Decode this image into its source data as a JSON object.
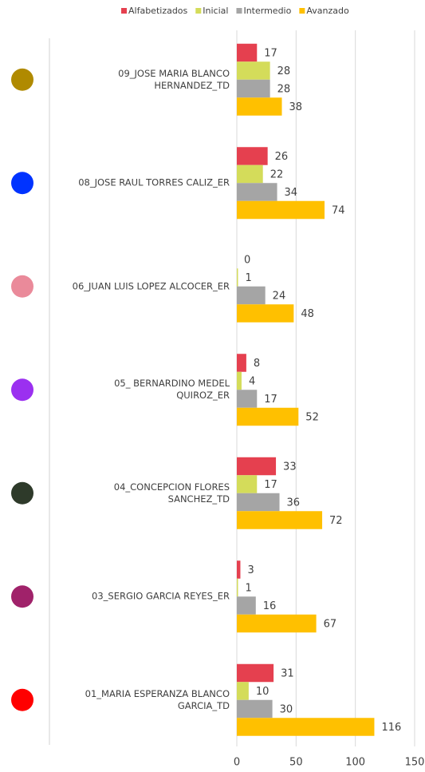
{
  "chart_data": {
    "type": "bar",
    "orientation": "horizontal",
    "categories": [
      "09_JOSE MARIA BLANCO HERNANDEZ_TD",
      "08_JOSE RAUL TORRES CALIZ_ER",
      "06_JUAN LUIS LOPEZ ALCOCER_ER",
      "05_ BERNARDINO MEDEL QUIROZ_ER",
      "04_CONCEPCION FLORES SANCHEZ_TD",
      "03_SERGIO GARCIA REYES_ER",
      "01_MARIA ESPERANZA BLANCO GARCIA_TD"
    ],
    "category_colors": [
      "#b08a00",
      "#0033ff",
      "#ea8a9a",
      "#9b30f0",
      "#2e3a2a",
      "#a0226a",
      "#ff0000"
    ],
    "series": [
      {
        "name": "Alfabetizados",
        "color": "#e5404f",
        "values": [
          17,
          26,
          0,
          8,
          33,
          3,
          31
        ]
      },
      {
        "name": "Inicial",
        "color": "#d4dc5a",
        "values": [
          28,
          22,
          1,
          4,
          17,
          1,
          10
        ]
      },
      {
        "name": "Intermedio",
        "color": "#a5a5a5",
        "values": [
          28,
          34,
          24,
          17,
          36,
          16,
          30
        ]
      },
      {
        "name": "Avanzado",
        "color": "#ffc000",
        "values": [
          38,
          74,
          48,
          52,
          72,
          67,
          116
        ]
      }
    ],
    "xlim": [
      0,
      150
    ],
    "xticks": [
      0,
      50,
      100,
      150
    ],
    "grid": true,
    "legend": "top"
  }
}
